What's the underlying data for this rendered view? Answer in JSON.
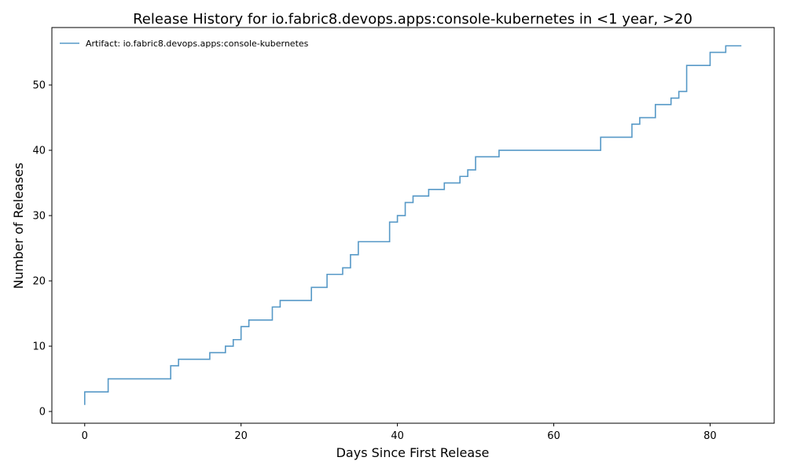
{
  "chart_data": {
    "type": "line",
    "drawstyle": "steps-post",
    "title": "Release History for io.fabric8.devops.apps:console-kubernetes in <1 year, >20",
    "xlabel": "Days Since First Release",
    "ylabel": "Number of Releases",
    "xlim": [
      -4.2,
      88.2
    ],
    "ylim": [
      -1.8,
      58.8
    ],
    "xticks": [
      0,
      20,
      40,
      60,
      80
    ],
    "yticks": [
      0,
      10,
      20,
      30,
      40,
      50
    ],
    "grid": false,
    "legend_position": "top-left",
    "series": [
      {
        "name": "Artifact: io.fabric8.devops.apps:console-kubernetes",
        "color": "#1f77b4",
        "x": [
          0,
          0,
          3,
          11,
          12,
          16,
          18,
          19,
          20,
          21,
          24,
          25,
          29,
          31,
          33,
          34,
          35,
          39,
          40,
          41,
          42,
          44,
          46,
          48,
          49,
          50,
          53,
          66,
          70,
          71,
          73,
          75,
          76,
          77,
          80,
          82,
          84
        ],
        "y": [
          1,
          3,
          5,
          7,
          8,
          9,
          10,
          11,
          13,
          14,
          16,
          17,
          19,
          21,
          22,
          24,
          26,
          29,
          30,
          32,
          33,
          34,
          35,
          36,
          37,
          39,
          40,
          42,
          44,
          45,
          47,
          48,
          49,
          53,
          55,
          56,
          56
        ]
      }
    ]
  }
}
